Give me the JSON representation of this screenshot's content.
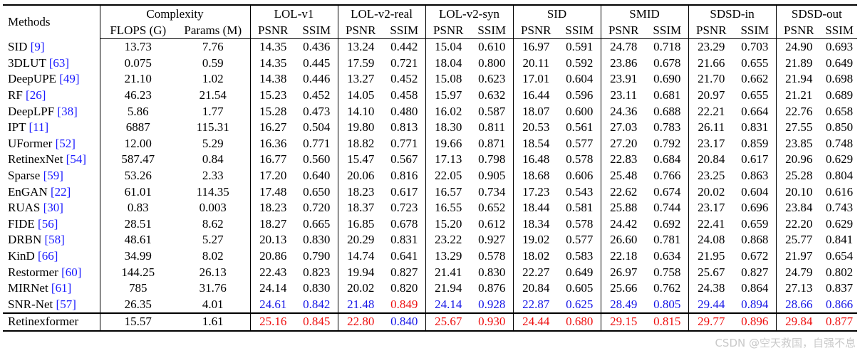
{
  "headers": {
    "methods": "Methods",
    "complexity": "Complexity",
    "flops": "FLOPS (G)",
    "params": "Params (M)",
    "datasets": [
      "LOL-v1",
      "LOL-v2-real",
      "LOL-v2-syn",
      "SID",
      "SMID",
      "SDSD-in",
      "SDSD-out"
    ],
    "psnr": "PSNR",
    "ssim": "SSIM"
  },
  "rows": [
    {
      "name": "SID ",
      "ref": "[9]",
      "vals": [
        "13.73",
        "7.76",
        "14.35",
        "0.436",
        "13.24",
        "0.442",
        "15.04",
        "0.610",
        "16.97",
        "0.591",
        "24.78",
        "0.718",
        "23.29",
        "0.703",
        "24.90",
        "0.693"
      ]
    },
    {
      "name": "3DLUT ",
      "ref": "[63]",
      "vals": [
        "0.075",
        "0.59",
        "14.35",
        "0.445",
        "17.59",
        "0.721",
        "18.04",
        "0.800",
        "20.11",
        "0.592",
        "23.86",
        "0.678",
        "21.66",
        "0.655",
        "21.89",
        "0.649"
      ]
    },
    {
      "name": "DeepUPE ",
      "ref": "[49]",
      "vals": [
        "21.10",
        "1.02",
        "14.38",
        "0.446",
        "13.27",
        "0.452",
        "15.08",
        "0.623",
        "17.01",
        "0.604",
        "23.91",
        "0.690",
        "21.70",
        "0.662",
        "21.94",
        "0.698"
      ]
    },
    {
      "name": "RF ",
      "ref": "[26]",
      "vals": [
        "46.23",
        "21.54",
        "15.23",
        "0.452",
        "14.05",
        "0.458",
        "15.97",
        "0.632",
        "16.44",
        "0.596",
        "23.11",
        "0.681",
        "20.97",
        "0.655",
        "21.21",
        "0.689"
      ]
    },
    {
      "name": "DeepLPF ",
      "ref": "[38]",
      "vals": [
        "5.86",
        "1.77",
        "15.28",
        "0.473",
        "14.10",
        "0.480",
        "16.02",
        "0.587",
        "18.07",
        "0.600",
        "24.36",
        "0.688",
        "22.21",
        "0.664",
        "22.76",
        "0.658"
      ]
    },
    {
      "name": "IPT ",
      "ref": "[11]",
      "vals": [
        "6887",
        "115.31",
        "16.27",
        "0.504",
        "19.80",
        "0.813",
        "18.30",
        "0.811",
        "20.53",
        "0.561",
        "27.03",
        "0.783",
        "26.11",
        "0.831",
        "27.55",
        "0.850"
      ]
    },
    {
      "name": "UFormer ",
      "ref": "[52]",
      "vals": [
        "12.00",
        "5.29",
        "16.36",
        "0.771",
        "18.82",
        "0.771",
        "19.66",
        "0.871",
        "18.54",
        "0.577",
        "27.20",
        "0.792",
        "23.17",
        "0.859",
        "23.85",
        "0.748"
      ]
    },
    {
      "name": "RetinexNet ",
      "ref": "[54]",
      "vals": [
        "587.47",
        "0.84",
        "16.77",
        "0.560",
        "15.47",
        "0.567",
        "17.13",
        "0.798",
        "16.48",
        "0.578",
        "22.83",
        "0.684",
        "20.84",
        "0.617",
        "20.96",
        "0.629"
      ]
    },
    {
      "name": "Sparse ",
      "ref": "[59]",
      "vals": [
        "53.26",
        "2.33",
        "17.20",
        "0.640",
        "20.06",
        "0.816",
        "22.05",
        "0.905",
        "18.68",
        "0.606",
        "25.48",
        "0.766",
        "23.25",
        "0.863",
        "25.28",
        "0.804"
      ]
    },
    {
      "name": "EnGAN ",
      "ref": "[22]",
      "vals": [
        "61.01",
        "114.35",
        "17.48",
        "0.650",
        "18.23",
        "0.617",
        "16.57",
        "0.734",
        "17.23",
        "0.543",
        "22.62",
        "0.674",
        "20.02",
        "0.604",
        "20.10",
        "0.616"
      ]
    },
    {
      "name": "RUAS ",
      "ref": "[30]",
      "vals": [
        "0.83",
        "0.003",
        "18.23",
        "0.720",
        "18.37",
        "0.723",
        "16.55",
        "0.652",
        "18.44",
        "0.581",
        "25.88",
        "0.744",
        "23.17",
        "0.696",
        "23.84",
        "0.743"
      ]
    },
    {
      "name": "FIDE ",
      "ref": "[56]",
      "vals": [
        "28.51",
        "8.62",
        "18.27",
        "0.665",
        "16.85",
        "0.678",
        "15.20",
        "0.612",
        "18.34",
        "0.578",
        "24.42",
        "0.692",
        "22.41",
        "0.659",
        "22.20",
        "0.629"
      ]
    },
    {
      "name": "DRBN ",
      "ref": "[58]",
      "vals": [
        "48.61",
        "5.27",
        "20.13",
        "0.830",
        "20.29",
        "0.831",
        "23.22",
        "0.927",
        "19.02",
        "0.577",
        "26.60",
        "0.781",
        "24.08",
        "0.868",
        "25.77",
        "0.841"
      ]
    },
    {
      "name": "KinD ",
      "ref": "[66]",
      "vals": [
        "34.99",
        "8.02",
        "20.86",
        "0.790",
        "14.74",
        "0.641",
        "13.29",
        "0.578",
        "18.02",
        "0.583",
        "22.18",
        "0.634",
        "21.95",
        "0.672",
        "21.97",
        "0.654"
      ]
    },
    {
      "name": "Restormer ",
      "ref": "[60]",
      "vals": [
        "144.25",
        "26.13",
        "22.43",
        "0.823",
        "19.94",
        "0.827",
        "21.41",
        "0.830",
        "22.27",
        "0.649",
        "26.97",
        "0.758",
        "25.67",
        "0.827",
        "24.79",
        "0.802"
      ]
    },
    {
      "name": "MIRNet ",
      "ref": "[61]",
      "vals": [
        "785",
        "31.76",
        "24.14",
        "0.830",
        "20.02",
        "0.820",
        "21.94",
        "0.876",
        "20.84",
        "0.605",
        "25.66",
        "0.762",
        "24.38",
        "0.864",
        "27.13",
        "0.837"
      ]
    },
    {
      "name": "SNR-Net ",
      "ref": "[57]",
      "vals": [
        "26.35",
        "4.01",
        "24.61",
        "0.842",
        "21.48",
        "0.849",
        "24.14",
        "0.928",
        "22.87",
        "0.625",
        "28.49",
        "0.805",
        "29.44",
        "0.894",
        "28.66",
        "0.866"
      ],
      "colors": [
        "",
        "",
        "blue",
        "blue",
        "blue",
        "red",
        "blue",
        "blue",
        "blue",
        "blue",
        "blue",
        "blue",
        "blue",
        "blue",
        "blue",
        "blue"
      ]
    }
  ],
  "ours": {
    "name": "Retinexformer",
    "vals": [
      "15.57",
      "1.61",
      "25.16",
      "0.845",
      "22.80",
      "0.840",
      "25.67",
      "0.930",
      "24.44",
      "0.680",
      "29.15",
      "0.815",
      "29.77",
      "0.896",
      "29.84",
      "0.877"
    ],
    "colors": [
      "",
      "",
      "red",
      "red",
      "red",
      "blue",
      "red",
      "red",
      "red",
      "red",
      "red",
      "red",
      "red",
      "red",
      "red",
      "red"
    ]
  },
  "watermark": "CSDN @空天救国，自强不息",
  "colors": {
    "red": "#ee1111",
    "blue": "#1515e6",
    "ref": "#1a1aff"
  }
}
